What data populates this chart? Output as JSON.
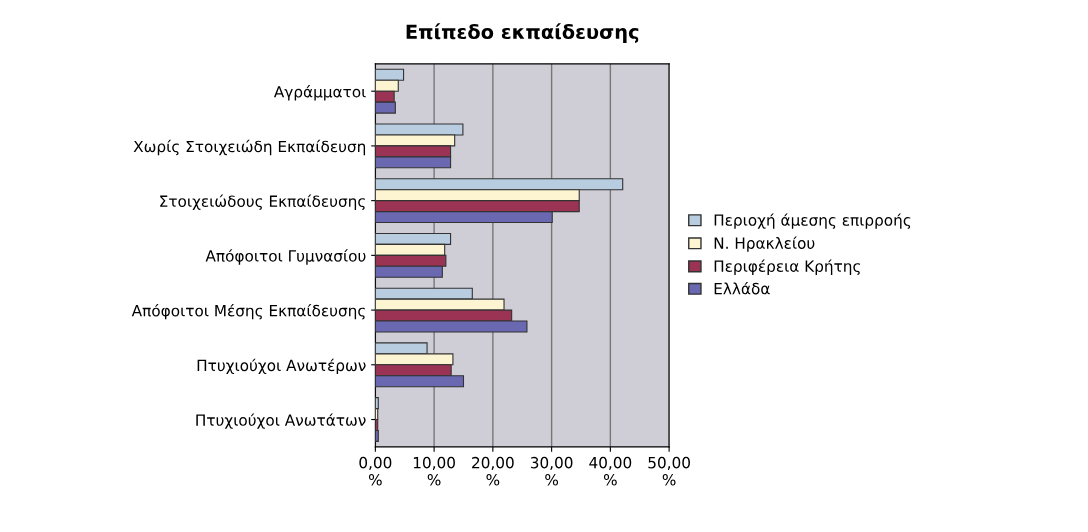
{
  "chart_data": {
    "type": "bar",
    "orientation": "horizontal",
    "title": "Επίπεδο εκπαίδευσης",
    "categories": [
      "Αγράμματοι",
      "Χωρίς Στοιχειώδη Εκπαίδευση",
      "Στοιχειώδους Εκπαίδευσης",
      "Απόφοιτοι Γυμνασίου",
      "Απόφοιτοι Μέσης Εκπαίδευσης",
      "Πτυχιούχοι Ανωτέρων",
      "Πτυχιούχοι Ανωτάτων"
    ],
    "series": [
      {
        "name": "Περιοχή άμεσης επιρροής",
        "color": "#b9cde0",
        "values": [
          4.8,
          14.9,
          42.1,
          12.8,
          16.5,
          8.8,
          0.5
        ]
      },
      {
        "name": "Ν. Ηρακλείου",
        "color": "#fdf4d2",
        "values": [
          3.9,
          13.5,
          34.7,
          11.8,
          21.9,
          13.2,
          0.4
        ]
      },
      {
        "name": "Περιφέρεια Κρήτης",
        "color": "#9b3355",
        "values": [
          3.2,
          12.8,
          34.7,
          12.0,
          23.2,
          12.9,
          0.4
        ]
      },
      {
        "name": "Ελλάδα",
        "color": "#6a68b0",
        "values": [
          3.4,
          12.8,
          30.1,
          11.4,
          25.8,
          15.0,
          0.5
        ]
      }
    ],
    "xlim": [
      0,
      50
    ],
    "xticks": [
      {
        "value": 0,
        "label": "0,00 %"
      },
      {
        "value": 10,
        "label": "10,00 %"
      },
      {
        "value": 20,
        "label": "20,00 %"
      },
      {
        "value": 30,
        "label": "30,00 %"
      },
      {
        "value": 40,
        "label": "40,00 %"
      },
      {
        "value": 50,
        "label": "50,00 %"
      }
    ],
    "grid": "x",
    "legend": "right"
  }
}
